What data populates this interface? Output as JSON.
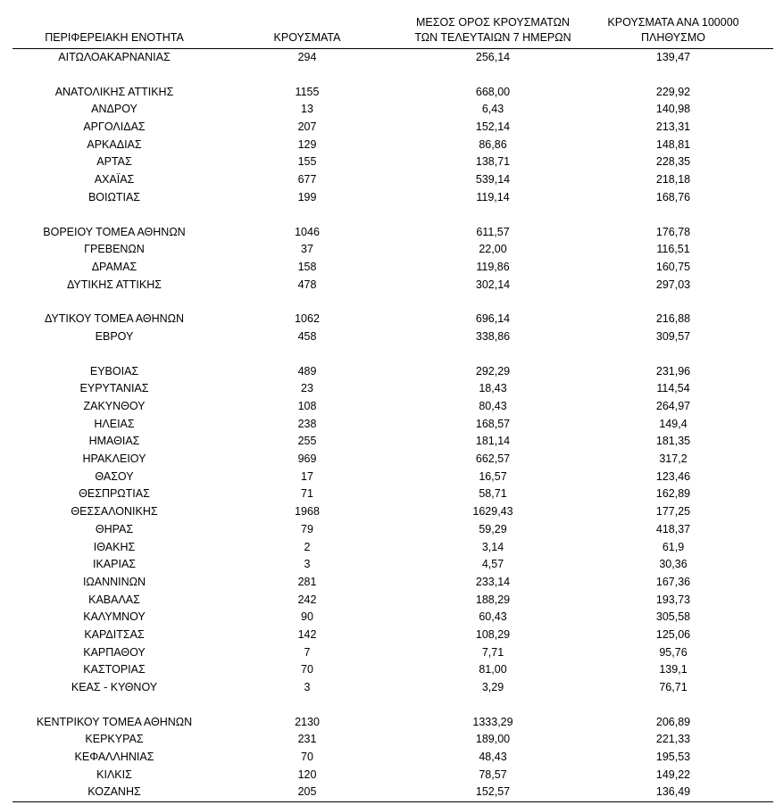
{
  "headers": {
    "region": "ΠΕΡΙΦΕΡΕΙΑΚΗ ΕΝΟΤΗΤΑ",
    "cases": "ΚΡΟΥΣΜΑΤΑ",
    "avg_line1": "ΜΕΣΟΣ ΟΡΟΣ ΚΡΟΥΣΜΑΤΩΝ",
    "avg_line2": "ΤΩΝ ΤΕΛΕΥΤΑΙΩΝ 7 ΗΜΕΡΩΝ",
    "per_line1": "ΚΡΟΥΣΜΑΤΑ ΑΝΑ 100000",
    "per_line2": "ΠΛΗΘΥΣΜΟ"
  },
  "rows": [
    {
      "region": "ΑΙΤΩΛΟΑΚΑΡΝΑΝΙΑΣ",
      "cases": "294",
      "avg": "256,14",
      "per": "139,47"
    },
    {
      "region": "ΑΝΑΤΟΛΙΚΗΣ ΑΤΤΙΚΗΣ",
      "cases": "1155",
      "avg": "668,00",
      "per": "229,92"
    },
    {
      "region": "ΑΝΔΡΟΥ",
      "cases": "13",
      "avg": "6,43",
      "per": "140,98"
    },
    {
      "region": "ΑΡΓΟΛΙΔΑΣ",
      "cases": "207",
      "avg": "152,14",
      "per": "213,31"
    },
    {
      "region": "ΑΡΚΑΔΙΑΣ",
      "cases": "129",
      "avg": "86,86",
      "per": "148,81"
    },
    {
      "region": "ΑΡΤΑΣ",
      "cases": "155",
      "avg": "138,71",
      "per": "228,35"
    },
    {
      "region": "ΑΧΑΪΑΣ",
      "cases": "677",
      "avg": "539,14",
      "per": "218,18"
    },
    {
      "region": "ΒΟΙΩΤΙΑΣ",
      "cases": "199",
      "avg": "119,14",
      "per": "168,76"
    },
    {
      "region": "ΒΟΡΕΙΟΥ ΤΟΜΕΑ ΑΘΗΝΩΝ",
      "cases": "1046",
      "avg": "611,57",
      "per": "176,78"
    },
    {
      "region": "ΓΡΕΒΕΝΩΝ",
      "cases": "37",
      "avg": "22,00",
      "per": "116,51"
    },
    {
      "region": "ΔΡΑΜΑΣ",
      "cases": "158",
      "avg": "119,86",
      "per": "160,75"
    },
    {
      "region": "ΔΥΤΙΚΗΣ ΑΤΤΙΚΗΣ",
      "cases": "478",
      "avg": "302,14",
      "per": "297,03"
    },
    {
      "region": "ΔΥΤΙΚΟΥ ΤΟΜΕΑ ΑΘΗΝΩΝ",
      "cases": "1062",
      "avg": "696,14",
      "per": "216,88"
    },
    {
      "region": "ΕΒΡΟΥ",
      "cases": "458",
      "avg": "338,86",
      "per": "309,57"
    },
    {
      "region": "ΕΥΒΟΙΑΣ",
      "cases": "489",
      "avg": "292,29",
      "per": "231,96"
    },
    {
      "region": "ΕΥΡΥΤΑΝΙΑΣ",
      "cases": "23",
      "avg": "18,43",
      "per": "114,54"
    },
    {
      "region": "ΖΑΚΥΝΘΟΥ",
      "cases": "108",
      "avg": "80,43",
      "per": "264,97"
    },
    {
      "region": "ΗΛΕΙΑΣ",
      "cases": "238",
      "avg": "168,57",
      "per": "149,4"
    },
    {
      "region": "ΗΜΑΘΙΑΣ",
      "cases": "255",
      "avg": "181,14",
      "per": "181,35"
    },
    {
      "region": "ΗΡΑΚΛΕΙΟΥ",
      "cases": "969",
      "avg": "662,57",
      "per": "317,2"
    },
    {
      "region": "ΘΑΣΟΥ",
      "cases": "17",
      "avg": "16,57",
      "per": "123,46"
    },
    {
      "region": "ΘΕΣΠΡΩΤΙΑΣ",
      "cases": "71",
      "avg": "58,71",
      "per": "162,89"
    },
    {
      "region": "ΘΕΣΣΑΛΟΝΙΚΗΣ",
      "cases": "1968",
      "avg": "1629,43",
      "per": "177,25"
    },
    {
      "region": "ΘΗΡΑΣ",
      "cases": "79",
      "avg": "59,29",
      "per": "418,37"
    },
    {
      "region": "ΙΘΑΚΗΣ",
      "cases": "2",
      "avg": "3,14",
      "per": "61,9"
    },
    {
      "region": "ΙΚΑΡΙΑΣ",
      "cases": "3",
      "avg": "4,57",
      "per": "30,36"
    },
    {
      "region": "ΙΩΑΝΝΙΝΩΝ",
      "cases": "281",
      "avg": "233,14",
      "per": "167,36"
    },
    {
      "region": "ΚΑΒΑΛΑΣ",
      "cases": "242",
      "avg": "188,29",
      "per": "193,73"
    },
    {
      "region": "ΚΑΛΥΜΝΟΥ",
      "cases": "90",
      "avg": "60,43",
      "per": "305,58"
    },
    {
      "region": "ΚΑΡΔΙΤΣΑΣ",
      "cases": "142",
      "avg": "108,29",
      "per": "125,06"
    },
    {
      "region": "ΚΑΡΠΑΘΟΥ",
      "cases": "7",
      "avg": "7,71",
      "per": "95,76"
    },
    {
      "region": "ΚΑΣΤΟΡΙΑΣ",
      "cases": "70",
      "avg": "81,00",
      "per": "139,1"
    },
    {
      "region": "ΚΕΑΣ - ΚΥΘΝΟΥ",
      "cases": "3",
      "avg": "3,29",
      "per": "76,71"
    },
    {
      "region": "ΚΕΝΤΡΙΚΟΥ ΤΟΜΕΑ ΑΘΗΝΩΝ",
      "cases": "2130",
      "avg": "1333,29",
      "per": "206,89"
    },
    {
      "region": "ΚΕΡΚΥΡΑΣ",
      "cases": "231",
      "avg": "189,00",
      "per": "221,33"
    },
    {
      "region": "ΚΕΦΑΛΛΗΝΙΑΣ",
      "cases": "70",
      "avg": "48,43",
      "per": "195,53"
    },
    {
      "region": "ΚΙΛΚΙΣ",
      "cases": "120",
      "avg": "78,57",
      "per": "149,22"
    },
    {
      "region": "ΚΟΖΑΝΗΣ",
      "cases": "205",
      "avg": "152,57",
      "per": "136,49"
    }
  ]
}
